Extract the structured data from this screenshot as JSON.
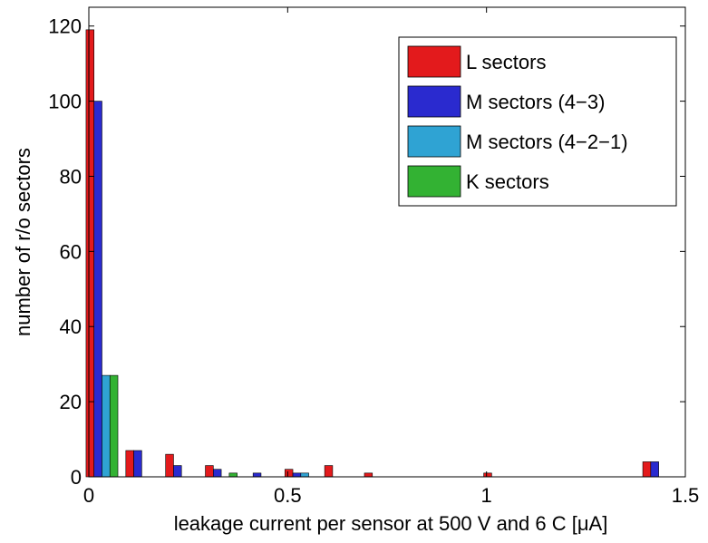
{
  "chart_data": {
    "type": "bar",
    "xlabel": "leakage current per sensor at 500 V and 6 C [μA]",
    "ylabel": "number of r/o sectors",
    "xlim": [
      0,
      1.5
    ],
    "ylim": [
      0,
      125
    ],
    "xticks": [
      0,
      0.5,
      1,
      1.5
    ],
    "xtick_labels": [
      "0",
      "0.5",
      "1",
      "1.5"
    ],
    "yticks": [
      0,
      20,
      40,
      60,
      80,
      100,
      120
    ],
    "ytick_labels": [
      "0",
      "20",
      "40",
      "60",
      "80",
      "100",
      "120"
    ],
    "grid": false,
    "legend_position": "top-right",
    "bin_width": 0.1,
    "bin_centers": [
      0.033,
      0.133,
      0.233,
      0.333,
      0.433,
      0.533,
      0.633,
      0.733,
      0.833,
      0.933,
      1.033,
      1.133,
      1.233,
      1.333,
      1.433
    ],
    "series": [
      {
        "name": "L sectors",
        "color": "#e31a1c",
        "values": [
          119,
          7,
          6,
          3,
          0,
          2,
          3,
          1,
          0,
          0,
          1,
          0,
          0,
          0,
          4
        ]
      },
      {
        "name": "M sectors (4−3)",
        "color": "#2a2acf",
        "values": [
          100,
          7,
          3,
          2,
          1,
          1,
          0,
          0,
          0,
          0,
          0,
          0,
          0,
          0,
          4
        ]
      },
      {
        "name": "M sectors (4−2−1)",
        "color": "#2fa3d3",
        "values": [
          27,
          0,
          0,
          0,
          0,
          1,
          0,
          0,
          0,
          0,
          0,
          0,
          0,
          0,
          0
        ]
      },
      {
        "name": "K sectors",
        "color": "#33b233",
        "values": [
          27,
          0,
          0,
          1,
          0,
          0,
          0,
          0,
          0,
          0,
          0,
          0,
          0,
          0,
          0
        ]
      }
    ]
  }
}
